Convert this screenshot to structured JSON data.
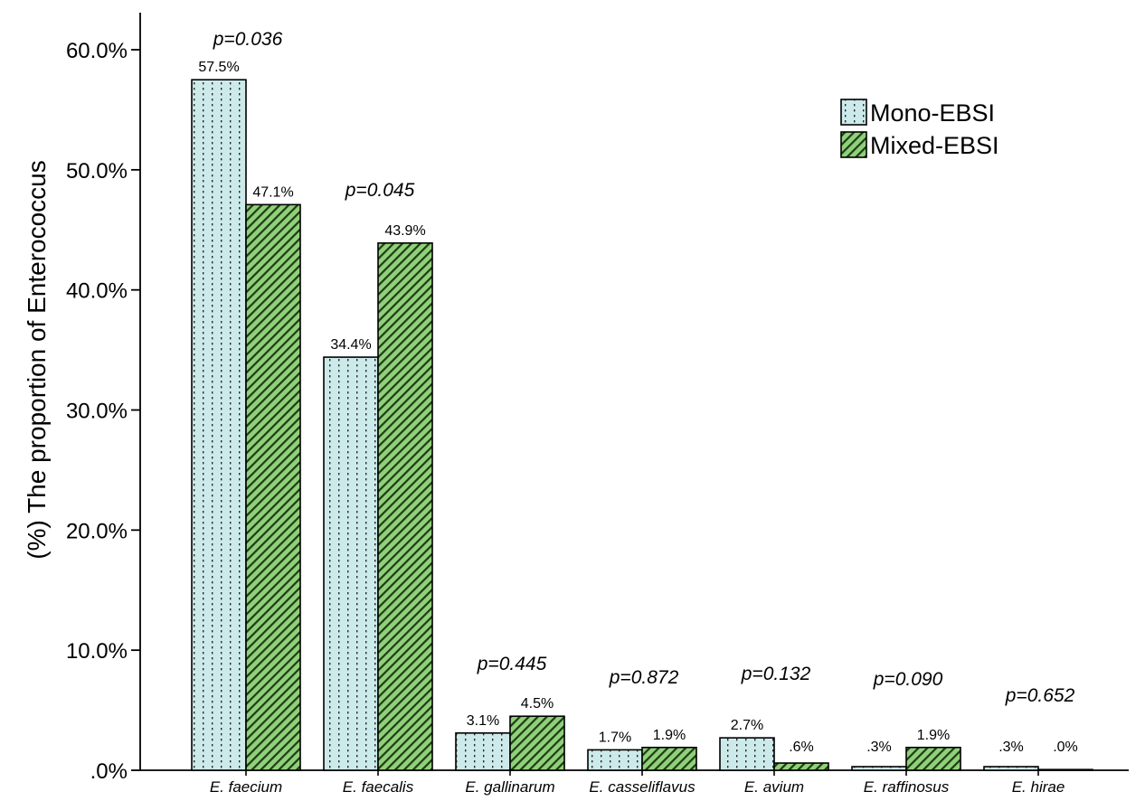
{
  "chart_data": {
    "type": "bar",
    "ylabel": "(%) The proportion of Enterococcus",
    "xlabel": "",
    "ylim": [
      0,
      60
    ],
    "yticks": [
      ".0%",
      "10.0%",
      "20.0%",
      "30.0%",
      "40.0%",
      "50.0%",
      "60.0%"
    ],
    "categories": [
      "E. faecium",
      "E. faecalis",
      "E. gallinarum",
      "E. casseliflavus",
      "E. avium",
      "E. raffinosus",
      "E. hirae"
    ],
    "series": [
      {
        "name": "Mono-EBSI",
        "color": "#cdeaea",
        "pattern": "dotted",
        "values": [
          57.5,
          34.4,
          3.1,
          1.7,
          2.7,
          0.3,
          0.3
        ],
        "labels": [
          "57.5%",
          "34.4%",
          "3.1%",
          "1.7%",
          "2.7%",
          ".3%",
          ".3%"
        ]
      },
      {
        "name": "Mixed-EBSI",
        "color": "#8fd17a",
        "pattern": "diagonal",
        "values": [
          47.1,
          43.9,
          4.5,
          1.9,
          0.6,
          1.9,
          0.0
        ],
        "labels": [
          "47.1%",
          "43.9%",
          "4.5%",
          "1.9%",
          ".6%",
          "1.9%",
          ".0%"
        ]
      }
    ],
    "p_values": [
      "p=0.036",
      "p=0.045",
      "p=0.445",
      "p=0.872",
      "p=0.132",
      "p=0.090",
      "p=0.652"
    ],
    "legend": {
      "placement": "top-right"
    },
    "grid": false
  }
}
